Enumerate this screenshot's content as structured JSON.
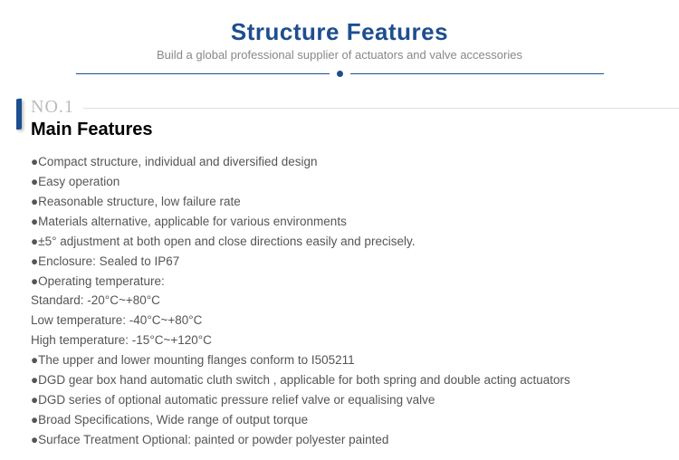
{
  "header": {
    "title": "Structure Features",
    "subtitle": "Build a global professional supplier of actuators and valve accessories"
  },
  "section": {
    "no_label": "NO.1",
    "title": "Main Features"
  },
  "features": [
    "●Compact structure, individual and diversified design",
    "●Easy operation",
    "●Reasonable structure, low failure rate",
    "●Materials alternative, applicable for various environments",
    "●±5° adjustment at both open and close directions easily and precisely.",
    "●Enclosure: Sealed to IP67",
    "●Operating temperature:",
    "Standard: -20°C~+80°C",
    "Low temperature: -40°C~+80°C",
    "High temperature: -15°C~+120°C",
    "●The upper and lower mounting flanges conform to I505211",
    "●DGD gear box hand automatic cluth switch , applicable for both spring and double acting actuators",
    "●DGD series of optional automatic pressure relief valve or equalising valve",
    "●Broad Specifications, Wide range of output torque",
    "●Surface Treatment Optional: painted or powder polyester painted"
  ],
  "colors": {
    "brand": "#1d4e8f",
    "muted": "#888",
    "body_text": "#555",
    "no_label": "#bbb",
    "rule": "#e0e0e0",
    "background": "#ffffff"
  },
  "typography": {
    "title_fontsize": 26,
    "subtitle_fontsize": 13,
    "section_title_fontsize": 20,
    "body_fontsize": 13.5,
    "no_label_font": "Georgia serif"
  }
}
